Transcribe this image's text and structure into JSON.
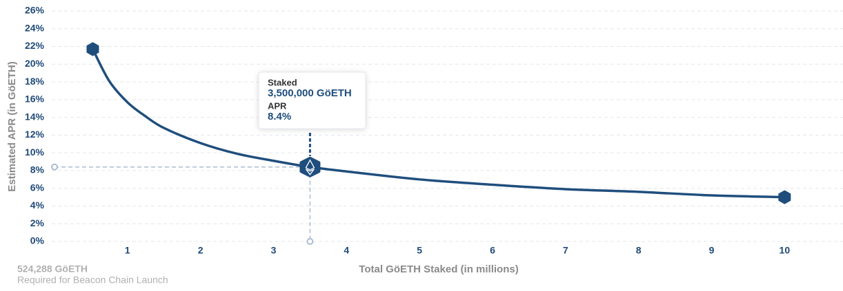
{
  "chart_data": {
    "type": "line",
    "x_label": "Total GöETH Staked  (in millions)",
    "y_label": "Estimated APR (in GöETH)",
    "x": [
      0.524288,
      0.75,
      1,
      1.25,
      1.5,
      2,
      2.5,
      3,
      3.5,
      4,
      5,
      6,
      7,
      8,
      9,
      10
    ],
    "series": [
      {
        "name": "APR",
        "color": "#1f4e7d",
        "values": [
          21.7,
          18.1,
          15.7,
          14.1,
          12.8,
          11.1,
          9.9,
          9.1,
          8.4,
          7.9,
          7.0,
          6.4,
          5.9,
          5.6,
          5.2,
          5.0
        ]
      }
    ],
    "xlim": [
      0,
      10.8
    ],
    "ylim": [
      0,
      26
    ],
    "xticks": [
      1,
      2,
      3,
      4,
      5,
      6,
      7,
      8,
      9,
      10
    ],
    "yticks": [
      {
        "value": 0,
        "label": "0%"
      },
      {
        "value": 2,
        "label": "2%"
      },
      {
        "value": 4,
        "label": "4%"
      },
      {
        "value": 6,
        "label": "6%"
      },
      {
        "value": 8,
        "label": "8%"
      },
      {
        "value": 10,
        "label": "10%"
      },
      {
        "value": 12,
        "label": "12%"
      },
      {
        "value": 14,
        "label": "14%"
      },
      {
        "value": 16,
        "label": "16%"
      },
      {
        "value": 18,
        "label": "18%"
      },
      {
        "value": 20,
        "label": "20%"
      },
      {
        "value": 22,
        "label": "22%"
      },
      {
        "value": 24,
        "label": "24%"
      },
      {
        "value": 26,
        "label": "26%"
      }
    ],
    "grid": true,
    "highlight": {
      "x": 3.5,
      "y": 8.4,
      "x_heading": "Staked",
      "x_label": "3,500,000 GöETH",
      "y_heading": "APR",
      "y_label": "8.4%"
    },
    "annotation": {
      "title": "524,288 GöETH",
      "text": "Required for Beacon Chain Launch"
    }
  }
}
